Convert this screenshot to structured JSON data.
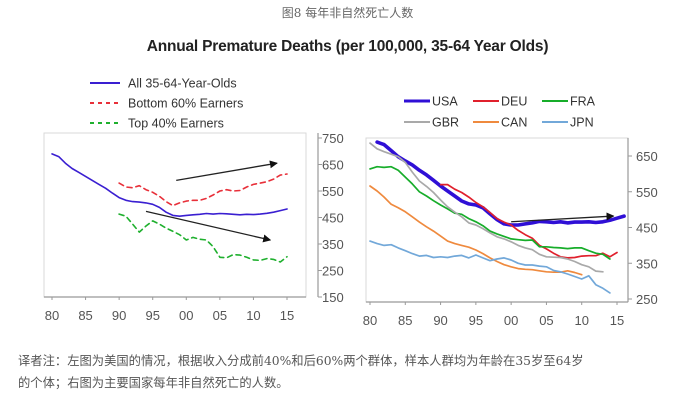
{
  "figure_caption": "图8 每年非自然死亡人数",
  "title": "Annual Premature Deaths (per 100,000, 35-64 Year Olds)",
  "note_lines": [
    "译者注：左图为美国的情况，根据收入分成前40%和后60%两个群体，样本人群均为年龄在35岁至64岁",
    "的个体；右图为主要国家每年非自然死亡的人数。"
  ],
  "chart_data": [
    {
      "type": "line",
      "title": "",
      "xlabel": "",
      "ylabel": "",
      "xlim": [
        1980,
        2017
      ],
      "ylim": [
        150,
        750
      ],
      "grid": false,
      "y_axis_side": "right",
      "legend_position": "top-left",
      "x_ticks": [
        1980,
        1985,
        1990,
        1995,
        2000,
        2005,
        2010,
        2015
      ],
      "x_tick_labels": [
        "80",
        "85",
        "90",
        "95",
        "00",
        "05",
        "10",
        "15"
      ],
      "y_ticks": [
        150,
        250,
        350,
        450,
        550,
        650,
        750
      ],
      "y_tick_labels": [
        "150",
        "250",
        "350",
        "450",
        "550",
        "650",
        "750"
      ],
      "series": [
        {
          "name": "All 35-64-Year-Olds",
          "color": "#3a1fd1",
          "dash": "solid",
          "x": [
            1980,
            1981,
            1982,
            1983,
            1984,
            1985,
            1986,
            1987,
            1988,
            1989,
            1990,
            1991,
            1992,
            1993,
            1994,
            1995,
            1996,
            1997,
            1998,
            1999,
            2000,
            2001,
            2002,
            2003,
            2004,
            2005,
            2006,
            2007,
            2008,
            2009,
            2010,
            2011,
            2012,
            2013,
            2014,
            2015
          ],
          "values": [
            690,
            680,
            655,
            635,
            620,
            605,
            590,
            575,
            560,
            542,
            525,
            515,
            510,
            508,
            505,
            500,
            488,
            470,
            458,
            455,
            458,
            460,
            462,
            465,
            463,
            465,
            464,
            462,
            460,
            462,
            461,
            463,
            466,
            470,
            476,
            482
          ]
        },
        {
          "name": "Bottom 60% Earners",
          "color": "#e8303a",
          "dash": "dashed",
          "x": [
            1990,
            1991,
            1992,
            1993,
            1994,
            1995,
            1996,
            1997,
            1998,
            1999,
            2000,
            2001,
            2002,
            2003,
            2004,
            2005,
            2006,
            2007,
            2008,
            2009,
            2010,
            2011,
            2012,
            2013,
            2014,
            2015
          ],
          "values": [
            580,
            565,
            562,
            570,
            555,
            545,
            530,
            510,
            495,
            505,
            512,
            515,
            515,
            522,
            535,
            550,
            555,
            550,
            552,
            565,
            575,
            580,
            585,
            595,
            610,
            614
          ]
        },
        {
          "name": "Top 40% Earners",
          "color": "#1fb02e",
          "dash": "dashed",
          "x": [
            1990,
            1991,
            1992,
            1993,
            1994,
            1995,
            1996,
            1997,
            1998,
            1999,
            2000,
            2001,
            2002,
            2003,
            2004,
            2005,
            2006,
            2007,
            2008,
            2009,
            2010,
            2011,
            2012,
            2013,
            2014,
            2015
          ],
          "values": [
            463,
            455,
            425,
            395,
            418,
            437,
            425,
            410,
            398,
            385,
            365,
            375,
            368,
            365,
            340,
            300,
            298,
            310,
            308,
            300,
            290,
            288,
            295,
            292,
            282,
            302
          ]
        }
      ],
      "annotations": [
        {
          "type": "arrow",
          "description": "upward trend arrow",
          "from": [
            1998.5,
            590
          ],
          "to": [
            2013.5,
            655
          ]
        },
        {
          "type": "arrow",
          "description": "downward trend arrow",
          "from": [
            1994,
            473
          ],
          "to": [
            2012.5,
            365
          ]
        }
      ]
    },
    {
      "type": "line",
      "title": "",
      "xlabel": "",
      "ylabel": "",
      "xlim": [
        1980,
        2017
      ],
      "ylim": [
        250,
        700
      ],
      "grid": false,
      "y_axis_side": "right",
      "legend_position": "top",
      "x_ticks": [
        1980,
        1985,
        1990,
        1995,
        2000,
        2005,
        2010,
        2015
      ],
      "x_tick_labels": [
        "80",
        "85",
        "90",
        "95",
        "00",
        "05",
        "10",
        "15"
      ],
      "y_ticks": [
        250,
        350,
        450,
        550,
        650
      ],
      "y_tick_labels": [
        "250",
        "350",
        "450",
        "550",
        "650"
      ],
      "series": [
        {
          "name": "USA",
          "color": "#2f0fd6",
          "width": "bold",
          "x": [
            1981,
            1982,
            1983,
            1984,
            1985,
            1986,
            1987,
            1988,
            1989,
            1990,
            1991,
            1992,
            1993,
            1994,
            1995,
            1996,
            1997,
            1998,
            1999,
            2000,
            2001,
            2002,
            2003,
            2004,
            2005,
            2006,
            2007,
            2008,
            2009,
            2010,
            2011,
            2012,
            2013,
            2014,
            2015,
            2016
          ],
          "values": [
            689,
            682,
            665,
            648,
            636,
            625,
            610,
            597,
            582,
            566,
            552,
            538,
            524,
            516,
            513,
            505,
            488,
            472,
            460,
            457,
            457,
            460,
            463,
            467,
            466,
            464,
            466,
            463,
            465,
            465,
            466,
            464,
            466,
            470,
            476,
            482
          ]
        },
        {
          "name": "DEU",
          "color": "#e0202c",
          "x": [
            1990,
            1991,
            1992,
            1993,
            1994,
            1995,
            1996,
            1997,
            1998,
            1999,
            2000,
            2001,
            2002,
            2003,
            2004,
            2005,
            2006,
            2007,
            2008,
            2009,
            2010,
            2011,
            2012,
            2013,
            2014,
            2015
          ],
          "values": [
            570,
            570,
            557,
            548,
            535,
            520,
            508,
            492,
            475,
            465,
            457,
            442,
            430,
            420,
            400,
            390,
            378,
            368,
            365,
            366,
            370,
            371,
            371,
            378,
            368,
            380
          ]
        },
        {
          "name": "FRA",
          "color": "#17ad2a",
          "x": [
            1980,
            1981,
            1982,
            1983,
            1984,
            1985,
            1986,
            1987,
            1988,
            1989,
            1990,
            1991,
            1992,
            1993,
            1994,
            1995,
            1996,
            1997,
            1998,
            1999,
            2000,
            2001,
            2002,
            2003,
            2004,
            2005,
            2006,
            2007,
            2008,
            2009,
            2010,
            2011,
            2012,
            2013,
            2014
          ],
          "values": [
            614,
            620,
            618,
            620,
            610,
            591,
            572,
            550,
            538,
            525,
            513,
            502,
            490,
            487,
            475,
            466,
            455,
            440,
            432,
            425,
            418,
            416,
            414,
            415,
            396,
            396,
            394,
            393,
            391,
            393,
            393,
            385,
            378,
            375,
            362
          ]
        },
        {
          "name": "GBR",
          "color": "#a9a9a9",
          "x": [
            1980,
            1981,
            1982,
            1983,
            1984,
            1985,
            1986,
            1987,
            1988,
            1989,
            1990,
            1991,
            1992,
            1993,
            1994,
            1995,
            1996,
            1997,
            1998,
            1999,
            2000,
            2001,
            2002,
            2003,
            2004,
            2005,
            2006,
            2007,
            2008,
            2009,
            2010,
            2011,
            2012,
            2013
          ],
          "values": [
            686,
            670,
            662,
            655,
            648,
            632,
            605,
            580,
            565,
            548,
            527,
            508,
            493,
            480,
            463,
            457,
            447,
            435,
            424,
            418,
            410,
            400,
            393,
            388,
            375,
            368,
            367,
            366,
            362,
            355,
            346,
            340,
            328,
            326
          ]
        },
        {
          "name": "CAN",
          "color": "#ef8a3e",
          "x": [
            1980,
            1981,
            1982,
            1983,
            1984,
            1985,
            1986,
            1987,
            1988,
            1989,
            1990,
            1991,
            1992,
            1993,
            1994,
            1995,
            1996,
            1997,
            1998,
            1999,
            2000,
            2001,
            2002,
            2003,
            2004,
            2005,
            2006,
            2007,
            2008,
            2009,
            2010
          ],
          "values": [
            566,
            552,
            535,
            515,
            505,
            494,
            480,
            465,
            452,
            440,
            426,
            412,
            405,
            400,
            395,
            387,
            377,
            365,
            355,
            346,
            340,
            335,
            333,
            332,
            329,
            326,
            325,
            325,
            329,
            324,
            318
          ]
        },
        {
          "name": "JPN",
          "color": "#72a8d9",
          "x": [
            1980,
            1981,
            1982,
            1983,
            1984,
            1985,
            1986,
            1987,
            1988,
            1989,
            1990,
            1991,
            1992,
            1993,
            1994,
            1995,
            1996,
            1997,
            1998,
            1999,
            2000,
            2001,
            2002,
            2003,
            2004,
            2005,
            2006,
            2007,
            2008,
            2009,
            2010,
            2011,
            2012,
            2013,
            2014
          ],
          "values": [
            412,
            405,
            400,
            402,
            393,
            385,
            377,
            370,
            372,
            366,
            368,
            366,
            370,
            372,
            365,
            373,
            365,
            357,
            362,
            365,
            359,
            350,
            345,
            345,
            342,
            340,
            330,
            326,
            320,
            313,
            306,
            315,
            290,
            280,
            267
          ]
        }
      ],
      "annotations": [
        {
          "type": "arrow",
          "description": "USA upward trend arrow",
          "from": [
            2000,
            466
          ],
          "to": [
            2014.5,
            482
          ]
        }
      ]
    }
  ]
}
